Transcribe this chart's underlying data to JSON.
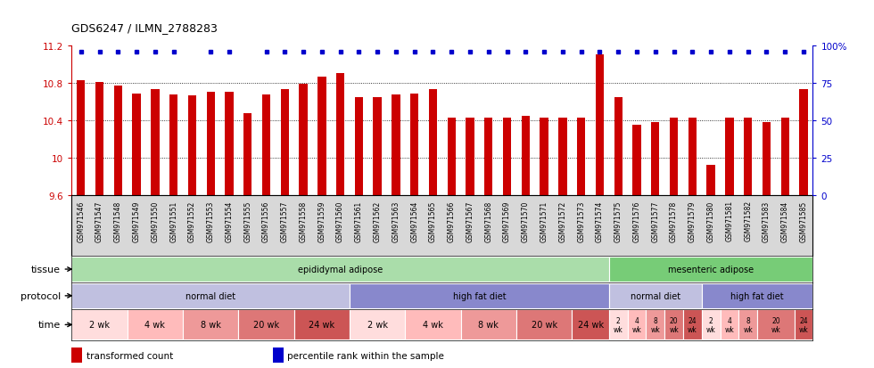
{
  "title": "GDS6247 / ILMN_2788283",
  "samples": [
    "GSM971546",
    "GSM971547",
    "GSM971548",
    "GSM971549",
    "GSM971550",
    "GSM971551",
    "GSM971552",
    "GSM971553",
    "GSM971554",
    "GSM971555",
    "GSM971556",
    "GSM971557",
    "GSM971558",
    "GSM971559",
    "GSM971560",
    "GSM971561",
    "GSM971562",
    "GSM971563",
    "GSM971564",
    "GSM971565",
    "GSM971566",
    "GSM971567",
    "GSM971568",
    "GSM971569",
    "GSM971570",
    "GSM971571",
    "GSM971572",
    "GSM971573",
    "GSM971574",
    "GSM971575",
    "GSM971576",
    "GSM971577",
    "GSM971578",
    "GSM971579",
    "GSM971580",
    "GSM971581",
    "GSM971582",
    "GSM971583",
    "GSM971584",
    "GSM971585"
  ],
  "values": [
    10.83,
    10.81,
    10.77,
    10.68,
    10.73,
    10.67,
    10.66,
    10.7,
    10.7,
    10.47,
    10.67,
    10.73,
    10.79,
    10.86,
    10.9,
    10.65,
    10.65,
    10.67,
    10.68,
    10.73,
    10.43,
    10.43,
    10.43,
    10.43,
    10.45,
    10.43,
    10.43,
    10.43,
    11.1,
    10.65,
    10.35,
    10.38,
    10.43,
    10.43,
    9.92,
    10.43,
    10.43,
    10.38,
    10.43,
    10.73
  ],
  "percentile_high": [
    1,
    1,
    1,
    1,
    1,
    1,
    0,
    1,
    1,
    0,
    1,
    1,
    1,
    1,
    1,
    1,
    1,
    1,
    1,
    1,
    1,
    1,
    1,
    1,
    1,
    1,
    1,
    1,
    1,
    1,
    1,
    1,
    1,
    1,
    1,
    1,
    1,
    1,
    1,
    1
  ],
  "ylim": [
    9.6,
    11.2
  ],
  "yticks": [
    9.6,
    10.0,
    10.4,
    10.8,
    11.2
  ],
  "ytick_labels": [
    "9.6",
    "10",
    "10.4",
    "10.8",
    "11.2"
  ],
  "right_yticks": [
    0,
    25,
    50,
    75,
    100
  ],
  "right_ytick_labels": [
    "0",
    "25",
    "50",
    "75",
    "100%"
  ],
  "bar_color": "#CC0000",
  "dot_color": "#0000CC",
  "bg_color": "#ffffff",
  "xticklabel_bg": "#d8d8d8",
  "tissue_groups": [
    {
      "label": "epididymal adipose",
      "start": 0,
      "end": 29,
      "color": "#aaddaa"
    },
    {
      "label": "mesenteric adipose",
      "start": 29,
      "end": 40,
      "color": "#77cc77"
    }
  ],
  "protocol_groups": [
    {
      "label": "normal diet",
      "start": 0,
      "end": 15,
      "color": "#c0c0e0"
    },
    {
      "label": "high fat diet",
      "start": 15,
      "end": 29,
      "color": "#8888cc"
    },
    {
      "label": "normal diet",
      "start": 29,
      "end": 34,
      "color": "#c0c0e0"
    },
    {
      "label": "high fat diet",
      "start": 34,
      "end": 40,
      "color": "#8888cc"
    }
  ],
  "time_groups": [
    {
      "label": "2 wk",
      "start": 0,
      "end": 3,
      "color": "#ffdddd"
    },
    {
      "label": "4 wk",
      "start": 3,
      "end": 6,
      "color": "#ffbbbb"
    },
    {
      "label": "8 wk",
      "start": 6,
      "end": 9,
      "color": "#ee9999"
    },
    {
      "label": "20 wk",
      "start": 9,
      "end": 12,
      "color": "#dd7777"
    },
    {
      "label": "24 wk",
      "start": 12,
      "end": 15,
      "color": "#cc5555"
    },
    {
      "label": "2 wk",
      "start": 15,
      "end": 18,
      "color": "#ffdddd"
    },
    {
      "label": "4 wk",
      "start": 18,
      "end": 21,
      "color": "#ffbbbb"
    },
    {
      "label": "8 wk",
      "start": 21,
      "end": 24,
      "color": "#ee9999"
    },
    {
      "label": "20 wk",
      "start": 24,
      "end": 27,
      "color": "#dd7777"
    },
    {
      "label": "24 wk",
      "start": 27,
      "end": 29,
      "color": "#cc5555"
    },
    {
      "label": "2\nwk",
      "start": 29,
      "end": 30,
      "color": "#ffdddd"
    },
    {
      "label": "4\nwk",
      "start": 30,
      "end": 31,
      "color": "#ffbbbb"
    },
    {
      "label": "8\nwk",
      "start": 31,
      "end": 32,
      "color": "#ee9999"
    },
    {
      "label": "20\nwk",
      "start": 32,
      "end": 33,
      "color": "#dd7777"
    },
    {
      "label": "24\nwk",
      "start": 33,
      "end": 34,
      "color": "#cc5555"
    },
    {
      "label": "2\nwk",
      "start": 34,
      "end": 35,
      "color": "#ffdddd"
    },
    {
      "label": "4\nwk",
      "start": 35,
      "end": 36,
      "color": "#ffbbbb"
    },
    {
      "label": "8\nwk",
      "start": 36,
      "end": 37,
      "color": "#ee9999"
    },
    {
      "label": "20\nwk",
      "start": 37,
      "end": 39,
      "color": "#dd7777"
    },
    {
      "label": "24\nwk",
      "start": 39,
      "end": 40,
      "color": "#cc5555"
    }
  ],
  "legend": [
    {
      "label": "transformed count",
      "color": "#CC0000"
    },
    {
      "label": "percentile rank within the sample",
      "color": "#0000CC"
    }
  ]
}
